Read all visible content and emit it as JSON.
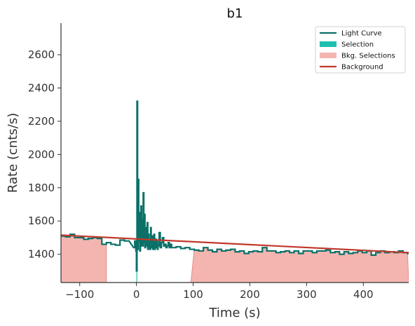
{
  "chart_data": {
    "type": "line",
    "title": "b1",
    "xlabel": "Time (s)",
    "ylabel": "Rate (cnts/s)",
    "xlim": [
      -133,
      480
    ],
    "ylim": [
      1230,
      2790
    ],
    "xticks": [
      -100,
      0,
      100,
      200,
      300,
      400
    ],
    "xtick_labels": [
      "−100",
      "0",
      "100",
      "200",
      "300",
      "400"
    ],
    "yticks": [
      1400,
      1600,
      1800,
      2000,
      2200,
      2400,
      2600
    ],
    "ytick_labels": [
      "1400",
      "1600",
      "1800",
      "2000",
      "2200",
      "2400",
      "2600"
    ],
    "grid": false,
    "legend_position": "top-right",
    "legend": [
      {
        "label": "Light Curve",
        "kind": "line",
        "color": "#0b7068"
      },
      {
        "label": "Selection",
        "kind": "patch",
        "color": "#1fbfb0"
      },
      {
        "label": "Bkg. Selections",
        "kind": "patch",
        "color": "#f4b5b0"
      },
      {
        "label": "Background",
        "kind": "line",
        "color": "#c0392b"
      }
    ],
    "colors": {
      "light_curve": "#0b7068",
      "selection": "#1fbfb0",
      "bkg_fill": "#f4b5b0",
      "bkg_edge": "#e88b85",
      "background": "#c0392b"
    },
    "bkg_selections": [
      [
        -133,
        -53
      ],
      [
        96,
        480
      ]
    ],
    "selection": [
      0,
      1
    ],
    "background_fit": {
      "x": [
        -133,
        480
      ],
      "y": [
        1515,
        1410
      ]
    },
    "light_curve_early": {
      "x_start": -133,
      "bin_width": 8,
      "values": [
        1510,
        1505,
        1520,
        1500,
        1500,
        1490,
        1495,
        1500,
        1495,
        1460,
        1470,
        1460,
        1455,
        1485,
        1480
      ]
    },
    "light_curve_burst": {
      "x": [
        -5,
        -3,
        -1,
        0,
        1,
        2,
        3,
        4,
        5,
        6,
        7,
        8,
        9,
        10,
        11,
        12,
        13,
        14,
        15,
        16,
        17,
        18,
        19,
        20,
        21,
        22,
        23,
        24,
        25,
        26,
        27,
        28,
        29,
        30,
        31,
        32,
        33,
        34,
        35,
        36,
        37,
        38,
        39,
        40,
        42,
        44,
        46,
        48,
        50,
        52,
        54,
        56,
        58,
        60,
        62
      ],
      "values": [
        1440,
        1480,
        1420,
        1300,
        2320,
        1430,
        1850,
        1480,
        1650,
        1420,
        1500,
        1690,
        1450,
        1610,
        1450,
        1770,
        1470,
        1640,
        1440,
        1560,
        1460,
        1450,
        1590,
        1430,
        1520,
        1440,
        1480,
        1430,
        1560,
        1440,
        1470,
        1510,
        1430,
        1460,
        1520,
        1430,
        1450,
        1490,
        1440,
        1480,
        1430,
        1460,
        1450,
        1530,
        1440,
        1470,
        1500,
        1450,
        1460,
        1440,
        1450,
        1470,
        1440,
        1460,
        1450
      ]
    },
    "light_curve_late": {
      "x_start": 62,
      "bin_width": 8,
      "values": [
        1440,
        1445,
        1435,
        1440,
        1430,
        1425,
        1420,
        1440,
        1425,
        1415,
        1430,
        1420,
        1425,
        1430,
        1415,
        1420,
        1405,
        1415,
        1420,
        1415,
        1440,
        1420,
        1420,
        1410,
        1415,
        1420,
        1410,
        1420,
        1405,
        1420,
        1420,
        1410,
        1420,
        1420,
        1425,
        1410,
        1415,
        1400,
        1415,
        1405,
        1410,
        1420,
        1410,
        1420,
        1395,
        1410,
        1420,
        1410,
        1415,
        1410,
        1420,
        1410,
        1405
      ]
    }
  }
}
